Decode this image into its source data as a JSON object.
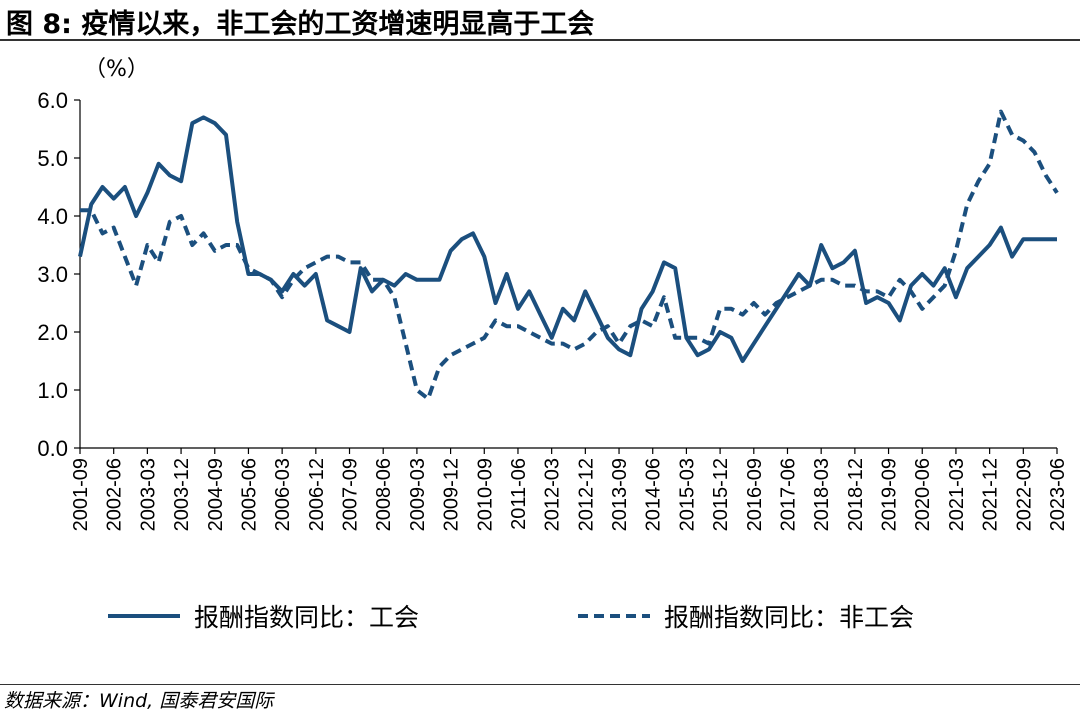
{
  "title": "图 8: 疫情以来，非工会的工资增速明显高于工会",
  "source": "数据来源：Wind, 国泰君安国际",
  "colors": {
    "line": "#1b4f7e",
    "axis": "#000000"
  },
  "chart_data": {
    "type": "line",
    "unit_label": "（%）",
    "ylim": [
      0,
      6
    ],
    "yticks": [
      "0.0",
      "1.0",
      "2.0",
      "3.0",
      "4.0",
      "5.0",
      "6.0"
    ],
    "x_start": "2001-09",
    "x_end": "2023-06",
    "xtick_labels": [
      "2001-09",
      "2002-06",
      "2003-03",
      "2003-12",
      "2004-09",
      "2005-06",
      "2006-03",
      "2006-12",
      "2007-09",
      "2008-06",
      "2009-03",
      "2009-12",
      "2010-09",
      "2011-06",
      "2012-03",
      "2012-12",
      "2013-09",
      "2014-06",
      "2015-03",
      "2015-12",
      "2016-09",
      "2017-06",
      "2018-03",
      "2018-12",
      "2019-09",
      "2020-06",
      "2021-03",
      "2021-12",
      "2022-09",
      "2023-06"
    ],
    "grid": false,
    "legend_position": "bottom",
    "series": [
      {
        "name": "报酬指数同比：工会",
        "style": "solid",
        "points": [
          [
            "2001-09",
            3.3
          ],
          [
            "2001-12",
            4.2
          ],
          [
            "2002-03",
            4.5
          ],
          [
            "2002-06",
            4.3
          ],
          [
            "2002-09",
            4.5
          ],
          [
            "2002-12",
            4.0
          ],
          [
            "2003-03",
            4.4
          ],
          [
            "2003-06",
            4.9
          ],
          [
            "2003-09",
            4.7
          ],
          [
            "2003-12",
            4.6
          ],
          [
            "2004-03",
            5.6
          ],
          [
            "2004-06",
            5.7
          ],
          [
            "2004-09",
            5.6
          ],
          [
            "2004-12",
            5.4
          ],
          [
            "2005-03",
            3.9
          ],
          [
            "2005-06",
            3.0
          ],
          [
            "2005-09",
            3.0
          ],
          [
            "2005-12",
            2.9
          ],
          [
            "2006-03",
            2.7
          ],
          [
            "2006-06",
            3.0
          ],
          [
            "2006-09",
            2.8
          ],
          [
            "2006-12",
            3.0
          ],
          [
            "2007-03",
            2.2
          ],
          [
            "2007-06",
            2.1
          ],
          [
            "2007-09",
            2.0
          ],
          [
            "2007-12",
            3.1
          ],
          [
            "2008-03",
            2.7
          ],
          [
            "2008-06",
            2.9
          ],
          [
            "2008-09",
            2.8
          ],
          [
            "2008-12",
            3.0
          ],
          [
            "2009-03",
            2.9
          ],
          [
            "2009-06",
            2.9
          ],
          [
            "2009-09",
            2.9
          ],
          [
            "2009-12",
            3.4
          ],
          [
            "2010-03",
            3.6
          ],
          [
            "2010-06",
            3.7
          ],
          [
            "2010-09",
            3.3
          ],
          [
            "2010-12",
            2.5
          ],
          [
            "2011-03",
            3.0
          ],
          [
            "2011-06",
            2.4
          ],
          [
            "2011-09",
            2.7
          ],
          [
            "2011-12",
            2.3
          ],
          [
            "2012-03",
            1.9
          ],
          [
            "2012-06",
            2.4
          ],
          [
            "2012-09",
            2.2
          ],
          [
            "2012-12",
            2.7
          ],
          [
            "2013-03",
            2.3
          ],
          [
            "2013-06",
            1.9
          ],
          [
            "2013-09",
            1.7
          ],
          [
            "2013-12",
            1.6
          ],
          [
            "2014-03",
            2.4
          ],
          [
            "2014-06",
            2.7
          ],
          [
            "2014-09",
            3.2
          ],
          [
            "2014-12",
            3.1
          ],
          [
            "2015-03",
            1.9
          ],
          [
            "2015-06",
            1.6
          ],
          [
            "2015-09",
            1.7
          ],
          [
            "2015-12",
            2.0
          ],
          [
            "2016-03",
            1.9
          ],
          [
            "2016-06",
            1.5
          ],
          [
            "2016-09",
            1.8
          ],
          [
            "2016-12",
            2.1
          ],
          [
            "2017-03",
            2.4
          ],
          [
            "2017-06",
            2.7
          ],
          [
            "2017-09",
            3.0
          ],
          [
            "2017-12",
            2.8
          ],
          [
            "2018-03",
            3.5
          ],
          [
            "2018-06",
            3.1
          ],
          [
            "2018-09",
            3.2
          ],
          [
            "2018-12",
            3.4
          ],
          [
            "2019-03",
            2.5
          ],
          [
            "2019-06",
            2.6
          ],
          [
            "2019-09",
            2.5
          ],
          [
            "2019-12",
            2.2
          ],
          [
            "2020-03",
            2.8
          ],
          [
            "2020-06",
            3.0
          ],
          [
            "2020-09",
            2.8
          ],
          [
            "2020-12",
            3.1
          ],
          [
            "2021-03",
            2.6
          ],
          [
            "2021-06",
            3.1
          ],
          [
            "2021-09",
            3.3
          ],
          [
            "2021-12",
            3.5
          ],
          [
            "2022-03",
            3.8
          ],
          [
            "2022-06",
            3.3
          ],
          [
            "2022-09",
            3.6
          ],
          [
            "2022-12",
            3.6
          ],
          [
            "2023-03",
            3.6
          ],
          [
            "2023-06",
            3.6
          ]
        ]
      },
      {
        "name": "报酬指数同比：非工会",
        "style": "dashed",
        "points": [
          [
            "2001-09",
            4.1
          ],
          [
            "2001-12",
            4.1
          ],
          [
            "2002-03",
            3.7
          ],
          [
            "2002-06",
            3.8
          ],
          [
            "2002-09",
            3.3
          ],
          [
            "2002-12",
            2.8
          ],
          [
            "2003-03",
            3.5
          ],
          [
            "2003-06",
            3.2
          ],
          [
            "2003-09",
            3.9
          ],
          [
            "2003-12",
            4.0
          ],
          [
            "2004-03",
            3.5
          ],
          [
            "2004-06",
            3.7
          ],
          [
            "2004-09",
            3.4
          ],
          [
            "2004-12",
            3.5
          ],
          [
            "2005-03",
            3.5
          ],
          [
            "2005-06",
            3.1
          ],
          [
            "2005-09",
            3.0
          ],
          [
            "2005-12",
            2.9
          ],
          [
            "2006-03",
            2.6
          ],
          [
            "2006-06",
            2.9
          ],
          [
            "2006-09",
            3.1
          ],
          [
            "2006-12",
            3.2
          ],
          [
            "2007-03",
            3.3
          ],
          [
            "2007-06",
            3.3
          ],
          [
            "2007-09",
            3.2
          ],
          [
            "2007-12",
            3.2
          ],
          [
            "2008-03",
            2.9
          ],
          [
            "2008-06",
            2.9
          ],
          [
            "2008-09",
            2.6
          ],
          [
            "2008-12",
            1.8
          ],
          [
            "2009-03",
            1.0
          ],
          [
            "2009-06",
            0.85
          ],
          [
            "2009-09",
            1.4
          ],
          [
            "2009-12",
            1.6
          ],
          [
            "2010-03",
            1.7
          ],
          [
            "2010-06",
            1.8
          ],
          [
            "2010-09",
            1.9
          ],
          [
            "2010-12",
            2.2
          ],
          [
            "2011-03",
            2.1
          ],
          [
            "2011-06",
            2.1
          ],
          [
            "2011-09",
            2.0
          ],
          [
            "2011-12",
            1.9
          ],
          [
            "2012-03",
            1.8
          ],
          [
            "2012-06",
            1.8
          ],
          [
            "2012-09",
            1.7
          ],
          [
            "2012-12",
            1.8
          ],
          [
            "2013-03",
            2.0
          ],
          [
            "2013-06",
            2.1
          ],
          [
            "2013-09",
            1.8
          ],
          [
            "2013-12",
            2.1
          ],
          [
            "2014-03",
            2.2
          ],
          [
            "2014-06",
            2.1
          ],
          [
            "2014-09",
            2.6
          ],
          [
            "2014-12",
            1.9
          ],
          [
            "2015-03",
            1.9
          ],
          [
            "2015-06",
            1.9
          ],
          [
            "2015-09",
            1.8
          ],
          [
            "2015-12",
            2.4
          ],
          [
            "2016-03",
            2.4
          ],
          [
            "2016-06",
            2.3
          ],
          [
            "2016-09",
            2.5
          ],
          [
            "2016-12",
            2.3
          ],
          [
            "2017-03",
            2.5
          ],
          [
            "2017-06",
            2.6
          ],
          [
            "2017-09",
            2.7
          ],
          [
            "2017-12",
            2.8
          ],
          [
            "2018-03",
            2.9
          ],
          [
            "2018-06",
            2.9
          ],
          [
            "2018-09",
            2.8
          ],
          [
            "2018-12",
            2.8
          ],
          [
            "2019-03",
            2.7
          ],
          [
            "2019-06",
            2.7
          ],
          [
            "2019-09",
            2.6
          ],
          [
            "2019-12",
            2.9
          ],
          [
            "2020-03",
            2.7
          ],
          [
            "2020-06",
            2.4
          ],
          [
            "2020-09",
            2.6
          ],
          [
            "2020-12",
            2.8
          ],
          [
            "2021-03",
            3.4
          ],
          [
            "2021-06",
            4.2
          ],
          [
            "2021-09",
            4.6
          ],
          [
            "2021-12",
            4.9
          ],
          [
            "2022-03",
            5.8
          ],
          [
            "2022-06",
            5.4
          ],
          [
            "2022-09",
            5.3
          ],
          [
            "2022-12",
            5.1
          ],
          [
            "2023-03",
            4.7
          ],
          [
            "2023-06",
            4.4
          ]
        ]
      }
    ]
  }
}
